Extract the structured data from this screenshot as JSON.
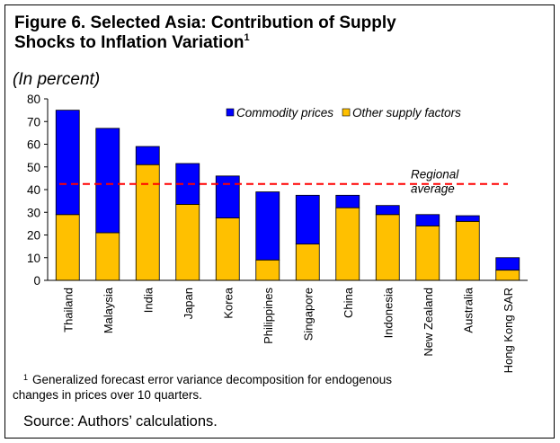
{
  "chart_data": {
    "type": "stacked_bar",
    "title": "Figure 6. Selected Asia: Contribution of Supply Shocks to Inflation Variation",
    "title_note": "1",
    "subtitle": "(In percent)",
    "categories": [
      "Thailand",
      "Malaysia",
      "India",
      "Japan",
      "Korea",
      "Philippines",
      "Singapore",
      "China",
      "Indonesia",
      "New Zealand",
      "Australia",
      "Hong Kong SAR"
    ],
    "series": [
      {
        "name": "Other supply factors",
        "color": "#ffc000",
        "values": [
          29,
          21,
          51,
          33.5,
          27.5,
          9,
          16,
          32,
          29,
          24,
          26,
          4.5
        ]
      },
      {
        "name": "Commodity prices",
        "color": "#0000ff",
        "values": [
          46,
          46,
          8,
          18,
          18.5,
          30,
          21.5,
          5.5,
          4,
          5,
          2.5,
          5.5
        ]
      }
    ],
    "legend_order": [
      1,
      0
    ],
    "reference_line": {
      "value": 42.5,
      "color": "#ff0000",
      "label_lines": [
        "Regional",
        "average"
      ]
    },
    "ylim": [
      0,
      80
    ],
    "yticks": [
      0,
      10,
      20,
      30,
      40,
      50,
      60,
      70,
      80
    ],
    "footnote": {
      "marker": "1",
      "lines": [
        "Generalized forecast error variance decomposition for endogenous",
        "changes in prices over 10 quarters."
      ]
    },
    "source": "Source: Authors’ calculations."
  }
}
